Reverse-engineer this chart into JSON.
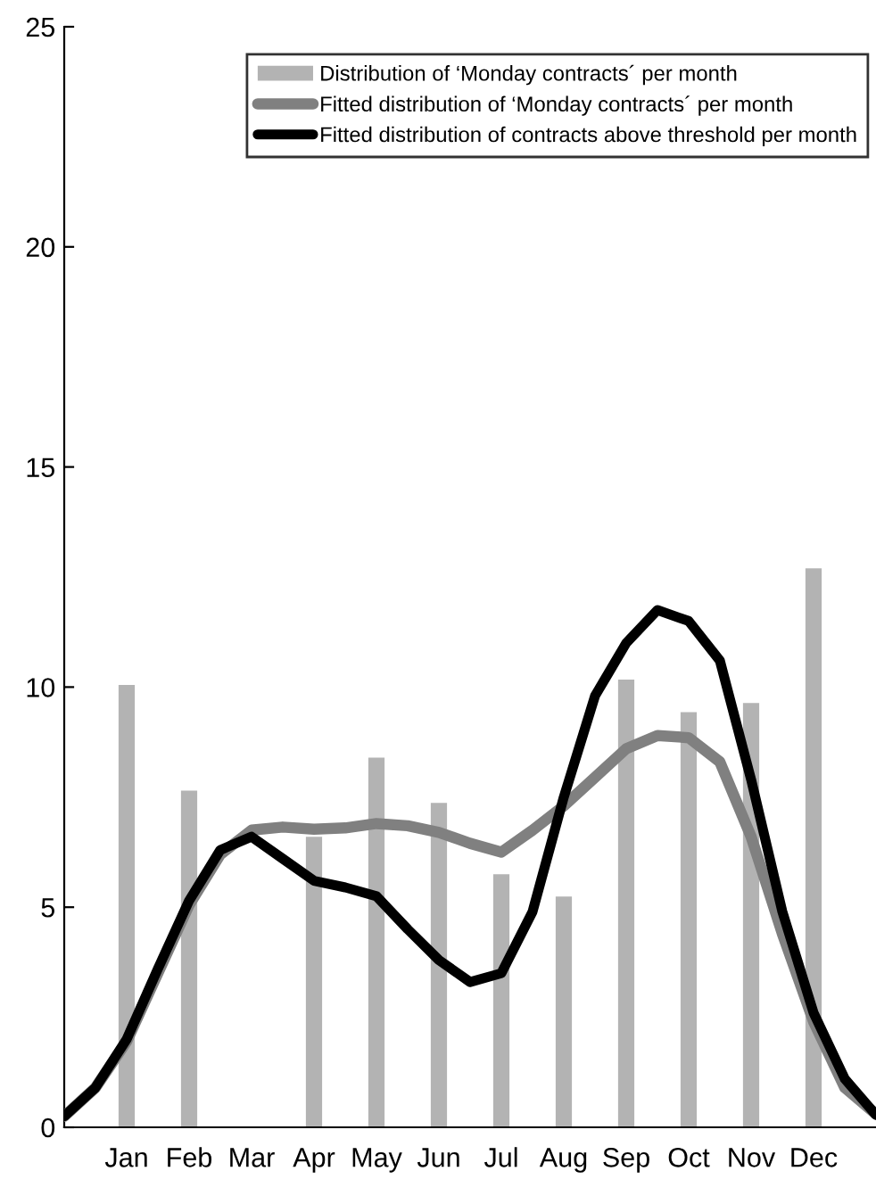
{
  "chart_data": {
    "type": "bar",
    "categories": [
      null,
      null,
      "Jan",
      null,
      "Feb",
      null,
      "Mar",
      null,
      "Apr",
      null,
      "May",
      null,
      "Jun",
      null,
      "Jul",
      null,
      "Aug",
      null,
      "Sep",
      null,
      "Oct",
      null,
      "Nov",
      null,
      "Dec",
      null,
      null
    ],
    "ylim": [
      0,
      25
    ],
    "yticks": [
      0,
      5,
      10,
      15,
      20,
      25
    ],
    "grid": false,
    "legend": "top right",
    "series": [
      {
        "name": "Distribution of ‘Monday contracts´ per month",
        "color": "#b3b3b3",
        "values": [
          null,
          null,
          10.05,
          null,
          7.65,
          null,
          null,
          null,
          6.6,
          null,
          8.4,
          null,
          7.37,
          null,
          5.75,
          null,
          5.24,
          null,
          10.17,
          null,
          9.43,
          null,
          9.64,
          null,
          12.7,
          null,
          null
        ]
      },
      {
        "name": "Fitted distribution of ‘Monday contracts´ per month",
        "type": "line",
        "color": "#808080",
        "values": [
          0.25,
          0.9,
          1.95,
          3.5,
          5.05,
          6.2,
          6.75,
          6.82,
          6.77,
          6.8,
          6.9,
          6.85,
          6.7,
          6.45,
          6.25,
          6.75,
          7.3,
          7.95,
          8.6,
          8.9,
          8.85,
          8.3,
          6.6,
          4.4,
          2.4,
          0.9,
          0.3
        ]
      },
      {
        "name": "Fitted distribution of contracts above threshold per month",
        "type": "line",
        "color": "#000000",
        "values": [
          0.25,
          0.9,
          2.0,
          3.6,
          5.15,
          6.3,
          6.6,
          6.1,
          5.6,
          5.45,
          5.25,
          4.5,
          3.8,
          3.3,
          3.5,
          4.9,
          7.5,
          9.8,
          11.0,
          11.75,
          11.5,
          10.6,
          7.9,
          4.9,
          2.6,
          1.1,
          0.28
        ]
      }
    ]
  }
}
